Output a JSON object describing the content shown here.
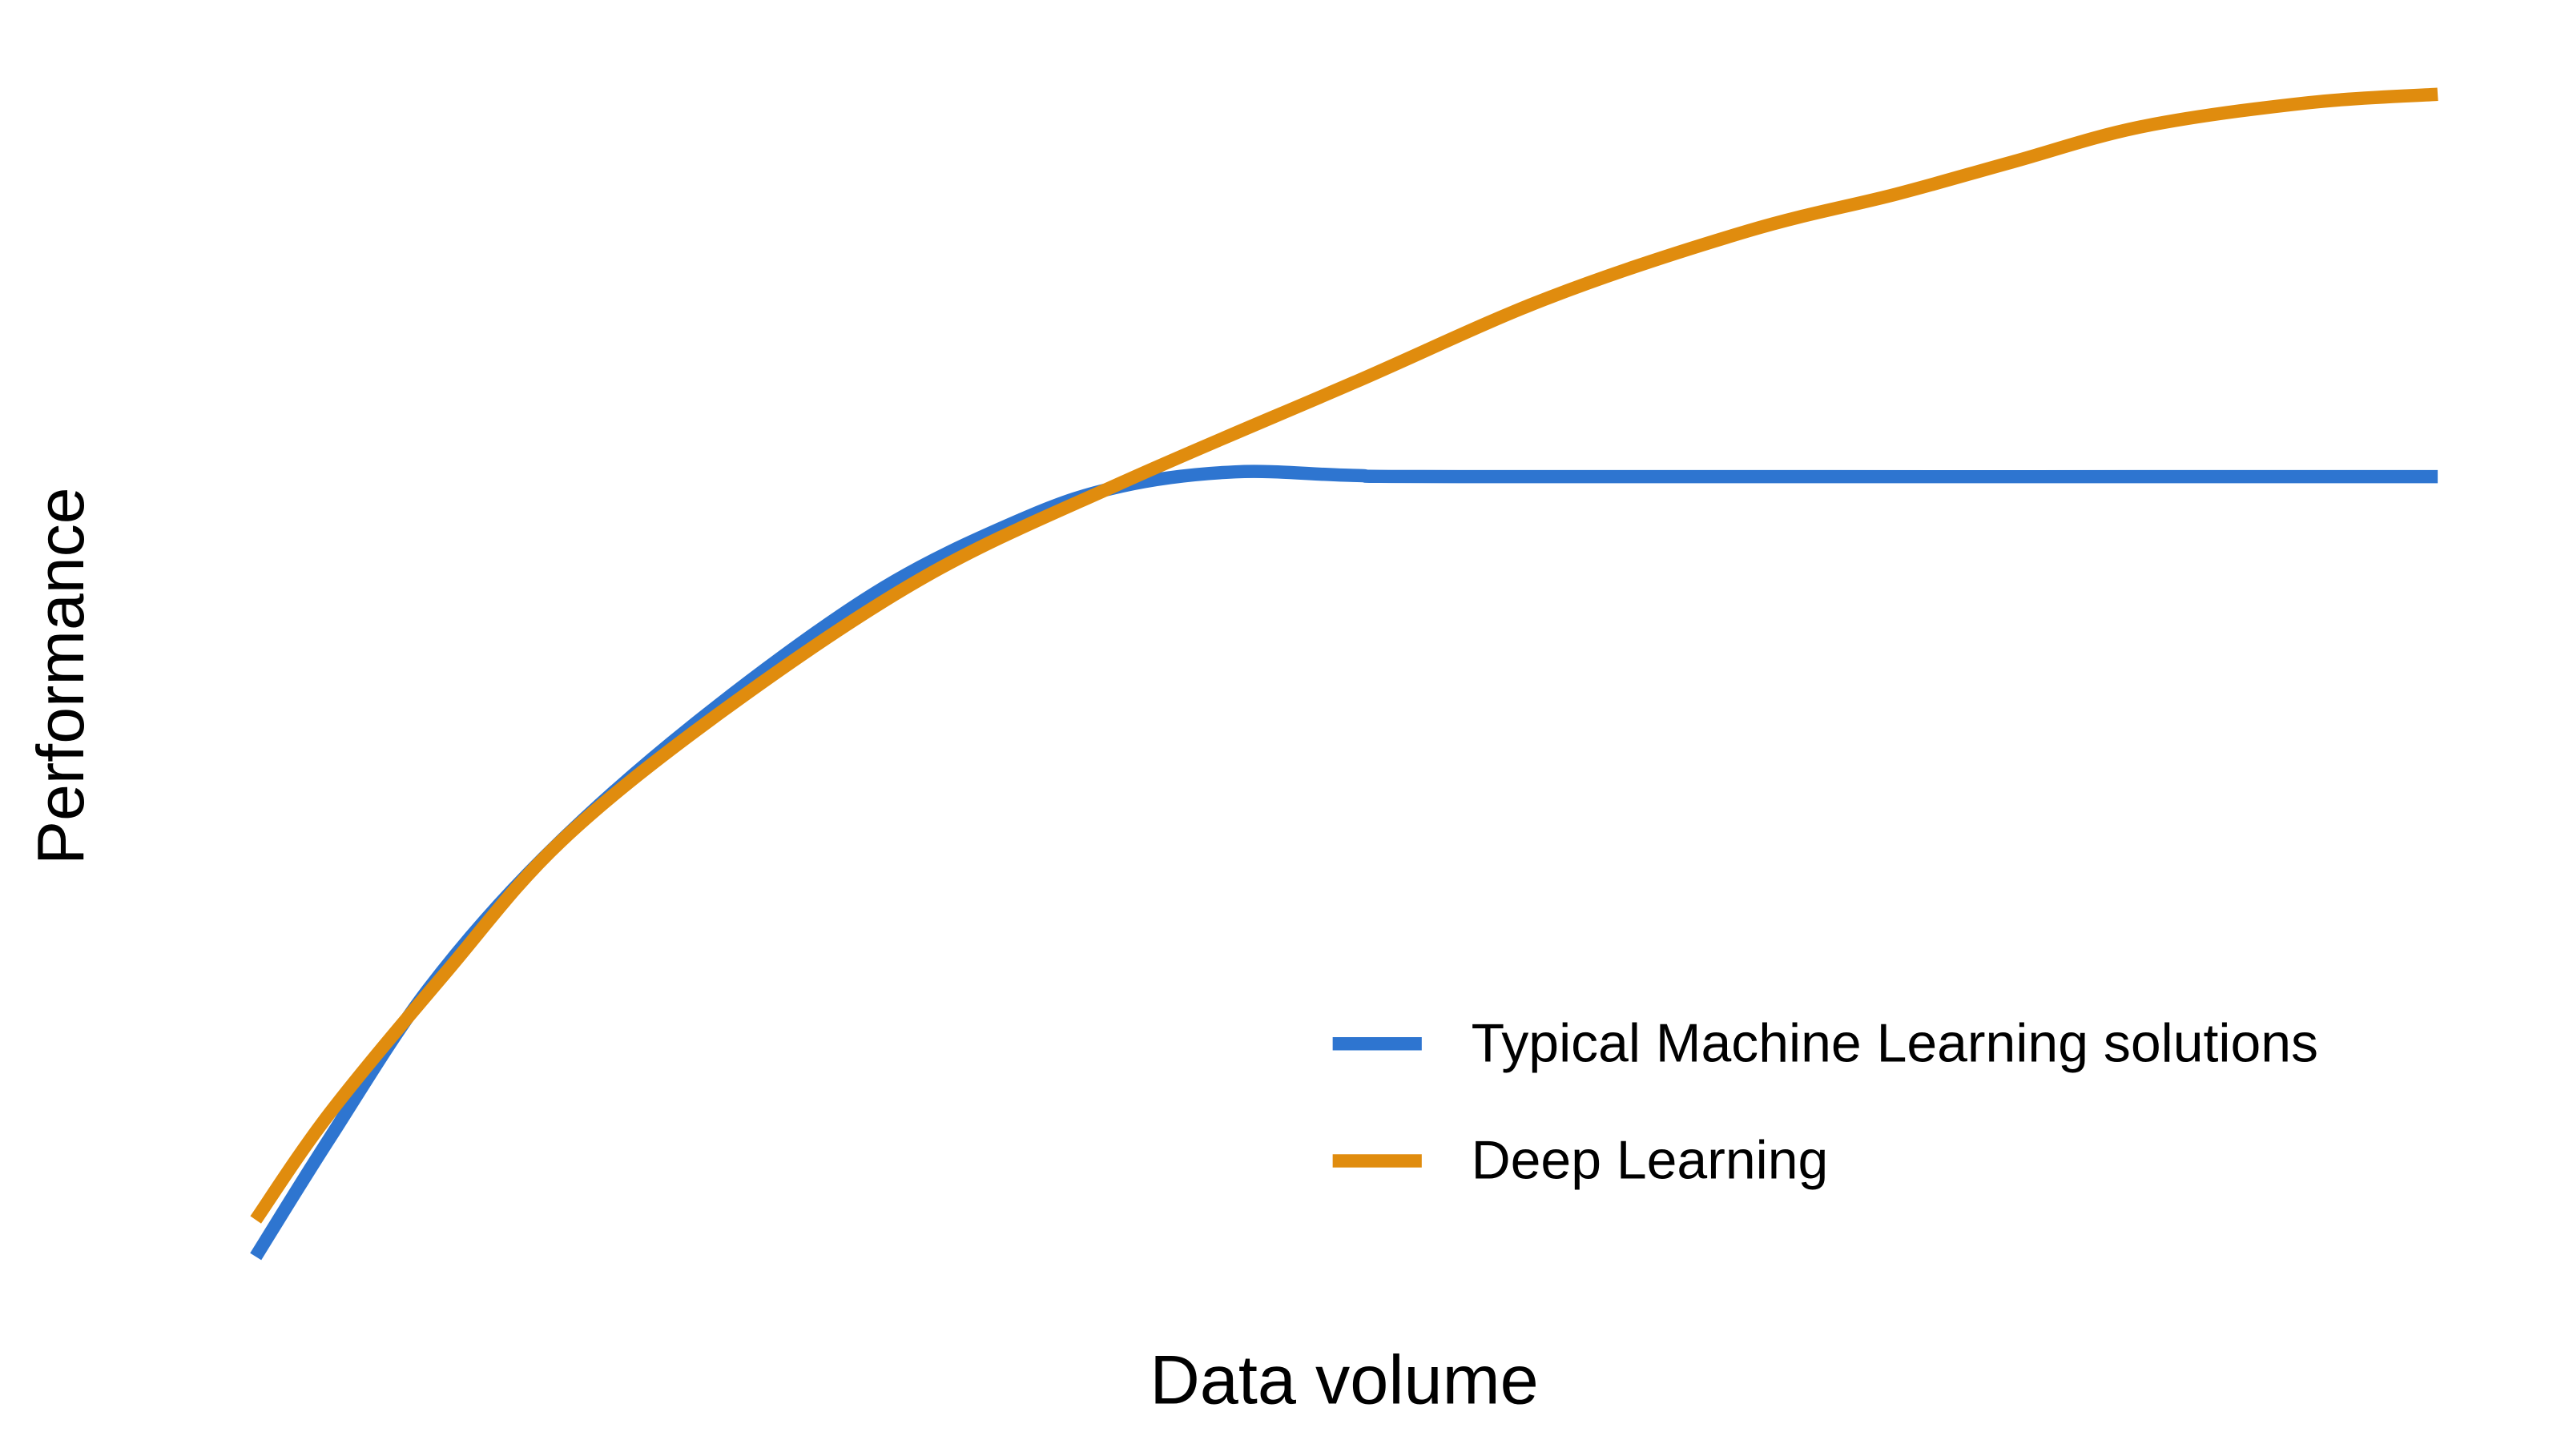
{
  "chart_data": {
    "type": "line",
    "x_label": "Data volume",
    "y_label": "Performance",
    "xlim": [
      0,
      100
    ],
    "ylim": [
      0,
      100
    ],
    "legend": "lower right",
    "series": [
      {
        "name": "Typical Machine Learning solutions",
        "color": "#2e75d0",
        "x": [
          0,
          3.4,
          7.9,
          13.2,
          20.0,
          28.3,
          35.1,
          39.7,
          44.9,
          50.3,
          56.3,
          100
        ],
        "values": [
          1.1,
          11.1,
          23.6,
          34.7,
          45.8,
          56.9,
          63.2,
          66.0,
          67.2,
          66.9,
          66.8,
          66.8
        ]
      },
      {
        "name": "Deep Learning",
        "color": "#e08c0e",
        "x": [
          0,
          3.4,
          8.7,
          14.0,
          21.5,
          30.6,
          39.7,
          50.3,
          59.3,
          68.4,
          75.2,
          80.5,
          86.5,
          94.1,
          100
        ],
        "values": [
          4.2,
          13.2,
          25.0,
          36.1,
          47.2,
          58.3,
          66.3,
          74.7,
          81.9,
          87.5,
          90.6,
          93.3,
          96.3,
          98.3,
          99.0
        ]
      }
    ]
  }
}
